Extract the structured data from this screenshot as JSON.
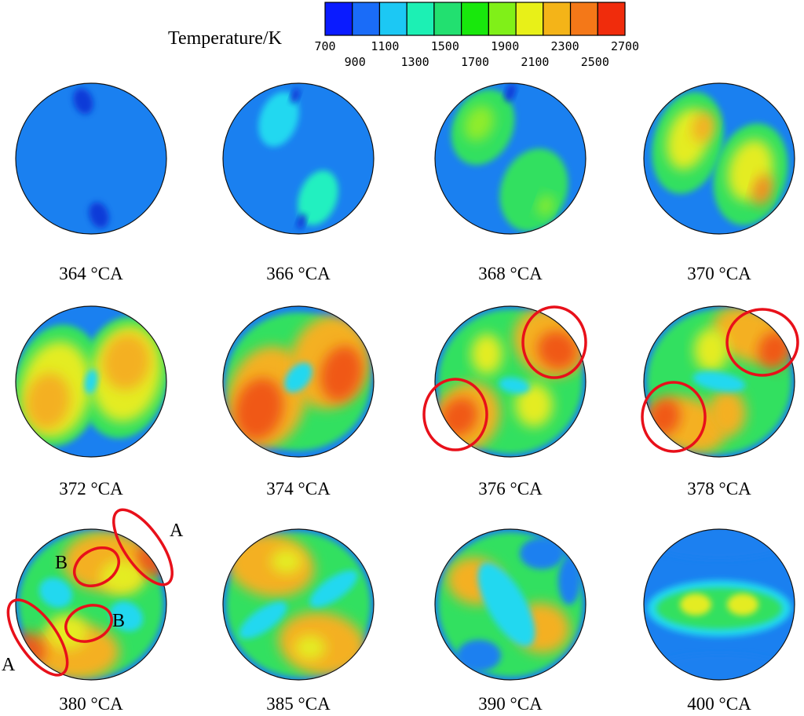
{
  "colorbar": {
    "label": "Temperature/K",
    "ticks_top": [
      "700",
      "1100",
      "1500",
      "1900",
      "2300",
      "2700"
    ],
    "ticks_bottom": [
      "900",
      "1300",
      "1700",
      "2100",
      "2500"
    ],
    "colors": [
      "#0a1bff",
      "#1a6cf8",
      "#1cc8f4",
      "#1cf0b4",
      "#22e070",
      "#18e80c",
      "#80f018",
      "#e8f018",
      "#f4b418",
      "#f47818",
      "#f02c0c"
    ]
  },
  "panels": [
    {
      "label": "364 °CA",
      "kind": "cold"
    },
    {
      "label": "366 °CA",
      "kind": "k366"
    },
    {
      "label": "368 °CA",
      "kind": "k368"
    },
    {
      "label": "370 °CA",
      "kind": "k370"
    },
    {
      "label": "372 °CA",
      "kind": "k372"
    },
    {
      "label": "374 °CA",
      "kind": "k374"
    },
    {
      "label": "376 °CA",
      "kind": "k376"
    },
    {
      "label": "378 °CA",
      "kind": "k378"
    },
    {
      "label": "380 °CA",
      "kind": "k380"
    },
    {
      "label": "385 °CA",
      "kind": "k385"
    },
    {
      "label": "390 °CA",
      "kind": "k390"
    },
    {
      "label": "400 °CA",
      "kind": "k400"
    }
  ],
  "annotations": {
    "A1": "A",
    "A2": "A",
    "B1": "B",
    "B2": "B"
  }
}
